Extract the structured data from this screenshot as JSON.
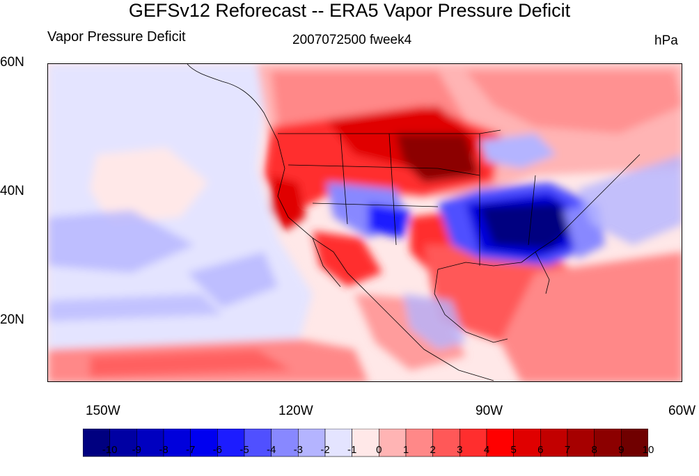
{
  "header": {
    "title": "GEFSv12 Reforecast -- ERA5 Vapor Pressure Deficit",
    "left_subtitle": "Vapor Pressure Deficit",
    "center_subtitle": "2007072500 fweek4",
    "right_subtitle": "hPa"
  },
  "map": {
    "lat_labels": [
      "60N",
      "40N",
      "20N"
    ],
    "lon_labels": [
      "150W",
      "120W",
      "90W",
      "60W"
    ],
    "lat_values": [
      60,
      40,
      20
    ],
    "lon_values": [
      -150,
      -120,
      -90,
      -60
    ],
    "extent": {
      "lon_min": -159,
      "lon_max": -60,
      "lat_min": 10,
      "lat_max": 60
    }
  },
  "colorbar": {
    "labels": [
      "-10",
      "-9",
      "-8",
      "-7",
      "-6",
      "-5",
      "-4",
      "-3",
      "-2",
      "-1",
      "0",
      "1",
      "2",
      "3",
      "4",
      "5",
      "6",
      "7",
      "8",
      "9",
      "10"
    ],
    "colors": [
      "#000080",
      "#0000a3",
      "#0000c0",
      "#0000dc",
      "#0000f0",
      "#1c1cff",
      "#5050ff",
      "#8888ff",
      "#b4b4ff",
      "#e4e4ff",
      "#ffe8e8",
      "#ffb4b4",
      "#ff8888",
      "#ff5858",
      "#ff2e2e",
      "#ff0000",
      "#e00000",
      "#c20000",
      "#a60000",
      "#8c0000",
      "#700000"
    ]
  }
}
